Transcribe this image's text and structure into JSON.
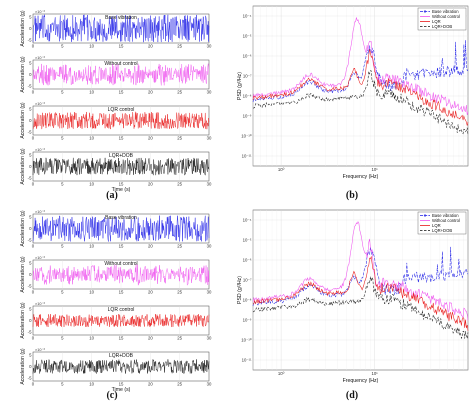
{
  "panels": {
    "a": {
      "caption": "(a)"
    },
    "b": {
      "caption": "(b)"
    },
    "c": {
      "caption": "(c)"
    },
    "d": {
      "caption": "(d)"
    }
  },
  "chart_data": [
    {
      "id": "a",
      "type": "line",
      "layout": "stacked-4",
      "x_range": [
        0,
        30
      ],
      "x_ticks": [
        "0",
        "5",
        "10",
        "15",
        "20",
        "25",
        "30"
      ],
      "xlabel": "Time (s)",
      "multiplier": "×10⁻³",
      "y_ticks": [
        "5",
        "0",
        "-5"
      ],
      "rows": [
        {
          "title": "Base vibration",
          "ylabel": "Acceleration (g)",
          "color": "#1f1fe6",
          "amplitude": 0.95,
          "modulated": false
        },
        {
          "title": "Without control",
          "ylabel": "Acceleration (g)",
          "color": "#ee55ee",
          "amplitude": 0.8,
          "modulated": true
        },
        {
          "title": "LQR control",
          "ylabel": "Acceleration (g)",
          "color": "#e81818",
          "amplitude": 0.6,
          "modulated": false
        },
        {
          "title": "LQR+DOB",
          "ylabel": "Acceleration (g)",
          "color": "#111111",
          "amplitude": 0.6,
          "modulated": false
        }
      ]
    },
    {
      "id": "b",
      "type": "line",
      "scale": "log-log",
      "xlabel": "Frequency (Hz)",
      "ylabel": "PSD (g²/Hz)",
      "x_range": [
        0.5,
        100
      ],
      "x_ticks": [
        "10⁰",
        "10¹"
      ],
      "y_ticks": [
        "10⁻⁴",
        "10⁻⁵",
        "10⁻⁶",
        "10⁻⁷",
        "10⁻⁸",
        "10⁻⁹",
        "10⁻¹⁰",
        "10⁻¹¹"
      ],
      "legend_position": "top-right",
      "series": [
        {
          "name": "Base vibration",
          "color": "#1f1fe6",
          "dash": "3,1.2",
          "marker": true
        },
        {
          "name": "Without control",
          "color": "#ee55ee",
          "dash": "",
          "marker": false
        },
        {
          "name": "LQR",
          "color": "#e81818",
          "dash": "",
          "marker": false
        },
        {
          "name": "LQR+DOB",
          "color": "#111111",
          "dash": "2.5,1.5",
          "marker": false
        }
      ]
    },
    {
      "id": "c",
      "type": "line",
      "layout": "stacked-4",
      "x_range": [
        0,
        30
      ],
      "x_ticks": [
        "0",
        "5",
        "10",
        "15",
        "20",
        "25",
        "30"
      ],
      "xlabel": "Time (s)",
      "multiplier": "×10⁻³",
      "y_ticks": [
        "5",
        "0",
        "-5"
      ],
      "rows": [
        {
          "title": "Base vibration",
          "ylabel": "Acceleration (g)",
          "color": "#1f1fe6",
          "amplitude": 0.9,
          "modulated": false
        },
        {
          "title": "Without control",
          "ylabel": "Acceleration (g)",
          "color": "#ee55ee",
          "amplitude": 0.75,
          "modulated": true
        },
        {
          "title": "LQR control",
          "ylabel": "Acceleration (g)",
          "color": "#e81818",
          "amplitude": 0.45,
          "modulated": false
        },
        {
          "title": "LQR+DOB",
          "ylabel": "Acceleration (g)",
          "color": "#111111",
          "amplitude": 0.5,
          "modulated": false
        }
      ]
    },
    {
      "id": "d",
      "type": "line",
      "scale": "log-log",
      "xlabel": "Frequency (Hz)",
      "ylabel": "PSD (g²/Hz)",
      "x_range": [
        0.5,
        100
      ],
      "x_ticks": [
        "10⁰",
        "10¹"
      ],
      "y_ticks": [
        "10⁻⁴",
        "10⁻⁵",
        "10⁻⁶",
        "10⁻⁷",
        "10⁻⁸",
        "10⁻⁹",
        "10⁻¹⁰",
        "10⁻¹¹"
      ],
      "legend_position": "top-right",
      "series": [
        {
          "name": "Base vibration",
          "color": "#1f1fe6",
          "dash": "3,1.2",
          "marker": true
        },
        {
          "name": "Without control",
          "color": "#ee55ee",
          "dash": "",
          "marker": false
        },
        {
          "name": "LQR",
          "color": "#e81818",
          "dash": "",
          "marker": false
        },
        {
          "name": "LQR+DOB",
          "color": "#111111",
          "dash": "2.5,1.5",
          "marker": false
        }
      ]
    }
  ]
}
